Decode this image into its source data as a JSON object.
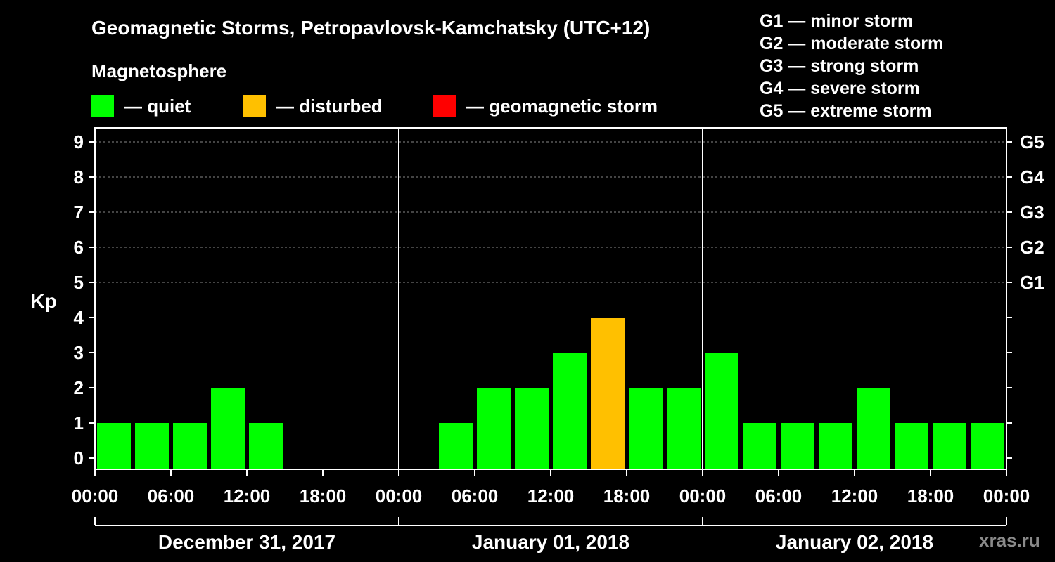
{
  "header": {
    "title": "Geomagnetic Storms, Petropavlovsk-Kamchatsky (UTC+12)",
    "subtitle": "Magnetosphere"
  },
  "legend": {
    "quiet": {
      "label": "— quiet",
      "color": "#00ff00"
    },
    "disturbed": {
      "label": "— disturbed",
      "color": "#ffc000"
    },
    "storm": {
      "label": "— geomagnetic storm",
      "color": "#ff0000"
    }
  },
  "storm_levels": [
    "G1 — minor storm",
    "G2 — moderate storm",
    "G3 — strong storm",
    "G4 — severe storm",
    "G5 — extreme storm"
  ],
  "watermark": "xras.ru",
  "chart_data": {
    "type": "bar",
    "ylabel": "Kp",
    "ylim": [
      0,
      9
    ],
    "yticks": [
      0,
      1,
      2,
      3,
      4,
      5,
      6,
      7,
      8,
      9
    ],
    "right_ticks": [
      {
        "kp": 5,
        "label": "G1"
      },
      {
        "kp": 6,
        "label": "G2"
      },
      {
        "kp": 7,
        "label": "G3"
      },
      {
        "kp": 8,
        "label": "G4"
      },
      {
        "kp": 9,
        "label": "G5"
      }
    ],
    "grid": "dashed horizontal at Kp 5-9",
    "xtick_labels": [
      "00:00",
      "06:00",
      "12:00",
      "18:00",
      "00:00",
      "06:00",
      "12:00",
      "18:00",
      "00:00",
      "06:00",
      "12:00",
      "18:00",
      "00:00"
    ],
    "days": [
      "December 31, 2017",
      "January 01, 2018",
      "January 02, 2018"
    ],
    "interval_hours": 3,
    "series": [
      {
        "values": [
          1,
          1,
          1,
          2,
          1,
          null,
          null,
          null,
          null,
          1,
          2,
          2,
          3,
          4,
          2,
          2,
          3,
          1,
          1,
          1,
          2,
          1,
          1,
          1
        ],
        "status": [
          "quiet",
          "quiet",
          "quiet",
          "quiet",
          "quiet",
          null,
          null,
          null,
          null,
          "quiet",
          "quiet",
          "quiet",
          "quiet",
          "disturbed",
          "quiet",
          "quiet",
          "quiet",
          "quiet",
          "quiet",
          "quiet",
          "quiet",
          "quiet",
          "quiet",
          "quiet"
        ]
      }
    ]
  }
}
